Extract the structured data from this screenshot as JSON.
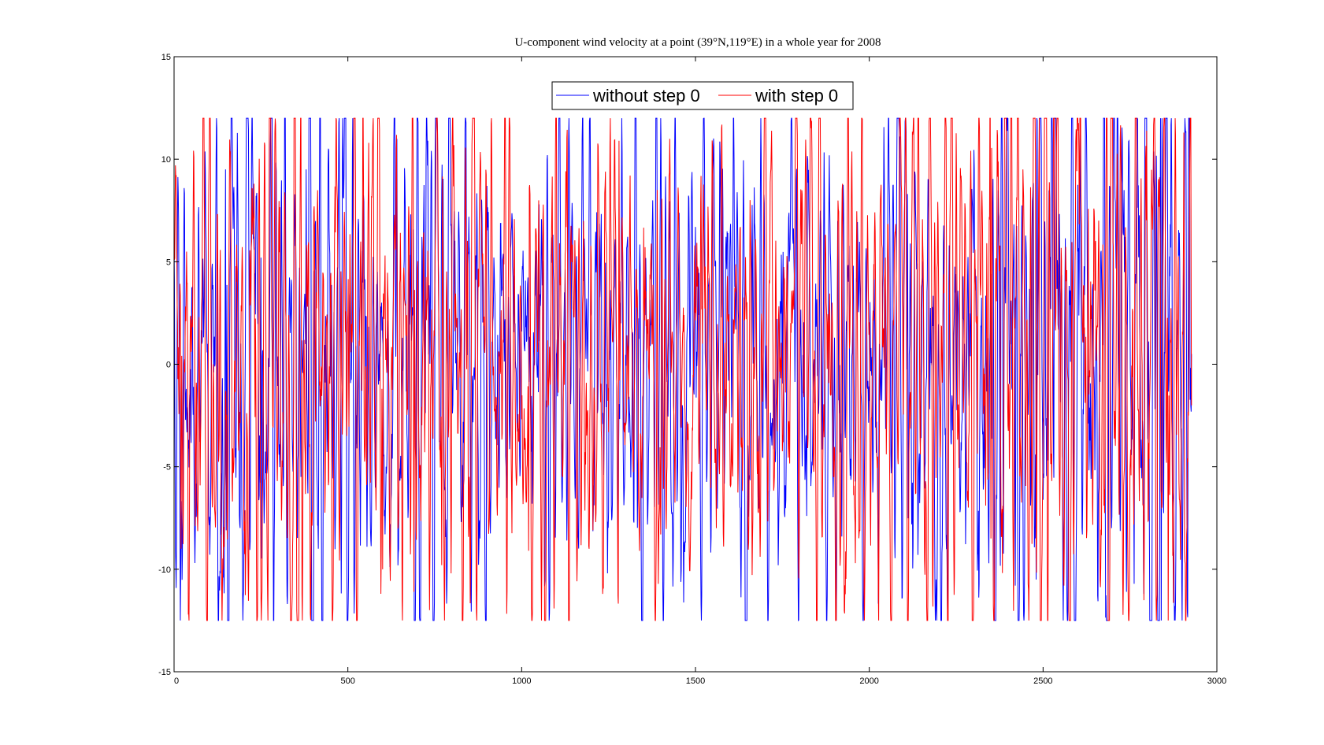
{
  "chart_data": {
    "type": "line",
    "title": "U-component wind velocity at a point (39°N,119°E) in a whole year for 2008",
    "xlabel": "",
    "ylabel": "",
    "xlim": [
      0,
      3000
    ],
    "ylim": [
      -15,
      15
    ],
    "x_ticks": [
      0,
      500,
      1000,
      1500,
      2000,
      2500,
      3000
    ],
    "x_tick_labels": [
      "0",
      "500",
      "1000",
      "1500",
      "2000",
      "2500",
      "3000"
    ],
    "y_ticks": [
      -15,
      -10,
      -5,
      0,
      5,
      10,
      15
    ],
    "y_tick_labels": [
      "-15",
      "-10",
      "-5",
      "0",
      "5",
      "10",
      "15"
    ],
    "grid": false,
    "legend_position": "top-center",
    "n_points": 2928,
    "series": [
      {
        "name": "without step 0",
        "color": "#0000ff",
        "keypoints": [
          [
            0,
            5.8
          ],
          [
            60,
            -9.7
          ],
          [
            150,
            -8.1
          ],
          [
            250,
            5.2
          ],
          [
            380,
            9.5
          ],
          [
            415,
            -9.0
          ],
          [
            555,
            -8.9
          ],
          [
            730,
            10.9
          ],
          [
            880,
            -8.5
          ],
          [
            900,
            8.7
          ],
          [
            1050,
            7.8
          ],
          [
            1130,
            -8.6
          ],
          [
            1500,
            6.7
          ],
          [
            1820,
            -7.4
          ],
          [
            2110,
            8.3
          ],
          [
            2140,
            -9.3
          ],
          [
            2210,
            -8.8
          ],
          [
            2380,
            12.0
          ],
          [
            2420,
            -10.8
          ],
          [
            2480,
            -10.5
          ],
          [
            2740,
            -11.1
          ],
          [
            2790,
            -11.2
          ],
          [
            2840,
            -12.5
          ],
          [
            2910,
            11.3
          ],
          [
            2928,
            0.5
          ]
        ],
        "y_range": [
          -12.5,
          12.0
        ]
      },
      {
        "name": "with step 0",
        "color": "#ff0000",
        "keypoints": [
          [
            0,
            5.5
          ],
          [
            20,
            -9.0
          ],
          [
            100,
            8.7
          ],
          [
            230,
            8.8
          ],
          [
            560,
            10.8
          ],
          [
            600,
            -10.0
          ],
          [
            690,
            -11.1
          ],
          [
            770,
            -9.8
          ],
          [
            1020,
            -9.1
          ],
          [
            1280,
            10.9
          ],
          [
            1390,
            8.5
          ],
          [
            1400,
            -8.3
          ],
          [
            2350,
            -8.5
          ],
          [
            2510,
            12.0
          ],
          [
            2560,
            -10.8
          ],
          [
            2860,
            -12.5
          ],
          [
            2905,
            11.3
          ],
          [
            2928,
            -2.0
          ]
        ],
        "y_range": [
          -12.5,
          12.0
        ]
      }
    ]
  }
}
